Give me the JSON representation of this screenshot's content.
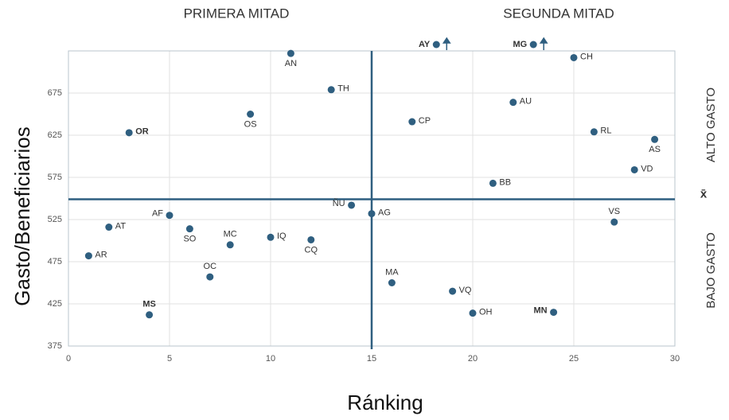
{
  "chart_data": {
    "type": "scatter",
    "xlabel": "Ránking",
    "ylabel": "Gasto/Beneficiarios",
    "left_title": "PRIMERA MITAD",
    "right_title": "SEGUNDA MITAD",
    "top_label": "ALTO GASTO",
    "bottom_label": "BAJO GASTO",
    "mean_label": "x̄",
    "mean_y": 549,
    "mid_x": 15,
    "xlim": [
      0,
      30
    ],
    "xticks": [
      0,
      5,
      10,
      15,
      20,
      25,
      30
    ],
    "ylim": [
      375,
      725
    ],
    "yticks": [
      375,
      425,
      475,
      525,
      575,
      625,
      675
    ],
    "grid": true,
    "color": "#2f5f80",
    "highlight_color": "#b22222",
    "left_color": "#2e8b2e",
    "right_color": "#e03030",
    "points": {
      "labels": [
        "AN",
        "TH",
        "OS",
        "OR",
        "CP",
        "AU",
        "CH",
        "RL",
        "AS",
        "VD",
        "BB",
        "ÑU",
        "AG",
        "AF",
        "SO",
        "AT",
        "MC",
        "IQ",
        "CQ",
        "VS",
        "AR",
        "OC",
        "MA",
        "VQ",
        "OH",
        "MN",
        "MS"
      ],
      "x": [
        11,
        13,
        9,
        3,
        17,
        22,
        25,
        26,
        29,
        28,
        21,
        14,
        15,
        5,
        6,
        2,
        8,
        10,
        12,
        27,
        1,
        7,
        16,
        19,
        20,
        24,
        4
      ],
      "y": [
        722,
        679,
        650,
        628,
        641,
        664,
        717,
        629,
        620,
        584,
        568,
        542,
        532,
        530,
        514,
        516,
        495,
        504,
        501,
        522,
        482,
        457,
        450,
        440,
        414,
        415,
        412
      ],
      "highlight": [
        3,
        25,
        26
      ]
    },
    "offscale": {
      "labels": [
        "AY",
        "MG"
      ],
      "x": [
        18.2,
        23
      ]
    }
  }
}
